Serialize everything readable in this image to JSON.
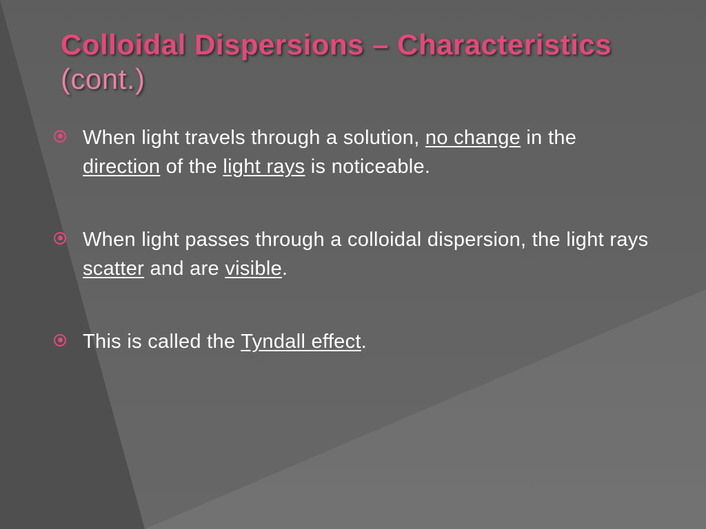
{
  "slide": {
    "background": {
      "gradient_top": "#5a5a5a",
      "gradient_bottom": "#6e6e6e",
      "triangle_colors": {
        "left": "#4f4f4f",
        "top_right": "#636363",
        "bottom_right": "#747474"
      }
    },
    "title": {
      "bold": "Colloidal Dispersions – Characteristics",
      "light": " (cont.)",
      "bold_color": "#e04a7a",
      "light_color": "#e882a4",
      "font_size_pt": 32,
      "font_weight_bold": 700,
      "font_weight_light": 400
    },
    "bullet_style": {
      "icon_color": "#e04a7a",
      "text_color": "#ffffff",
      "font_size_pt": 22,
      "font_weight": 300
    },
    "bullets": [
      {
        "segments": [
          {
            "t": "When light travels through a solution, ",
            "u": false
          },
          {
            "t": "no change",
            "u": true
          },
          {
            "t": " in the ",
            "u": false
          },
          {
            "t": "direction",
            "u": true
          },
          {
            "t": " of the ",
            "u": false
          },
          {
            "t": "light rays",
            "u": true
          },
          {
            "t": " is noticeable.",
            "u": false
          }
        ]
      },
      {
        "segments": [
          {
            "t": "When light passes through a colloidal dispersion, the light rays ",
            "u": false
          },
          {
            "t": "scatter",
            "u": true
          },
          {
            "t": " and are ",
            "u": false
          },
          {
            "t": "visible",
            "u": true
          },
          {
            "t": ".",
            "u": false
          }
        ]
      },
      {
        "segments": [
          {
            "t": "This is called the ",
            "u": false
          },
          {
            "t": "Tyndall effect",
            "u": true
          },
          {
            "t": ".",
            "u": false
          }
        ]
      }
    ]
  }
}
